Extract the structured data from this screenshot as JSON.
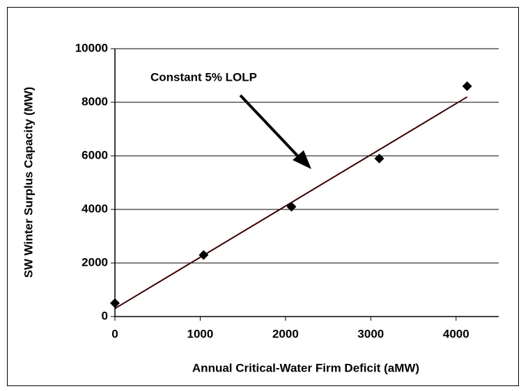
{
  "chart_data": {
    "type": "scatter",
    "x_label": "Annual Critical-Water Firm Deficit (aMW)",
    "y_label": "SW Winter Surplus Capacity (MW)",
    "annotation": "Constant 5% LOLP",
    "series": [
      {
        "color": "#000000",
        "x": [
          0,
          1040,
          2070,
          3100,
          4130
        ],
        "values": [
          500,
          2300,
          4100,
          5900,
          8600
        ]
      }
    ],
    "trendline": {
      "color": "#3a0000",
      "x": [
        0,
        4130
      ],
      "values": [
        300,
        8200
      ]
    },
    "xlim": [
      0,
      4500
    ],
    "xticks": [
      0,
      1000,
      2000,
      3000,
      4000
    ],
    "ylim": [
      0,
      10000
    ],
    "yticks": [
      0,
      2000,
      4000,
      6000,
      8000,
      10000
    ],
    "grid": true
  }
}
